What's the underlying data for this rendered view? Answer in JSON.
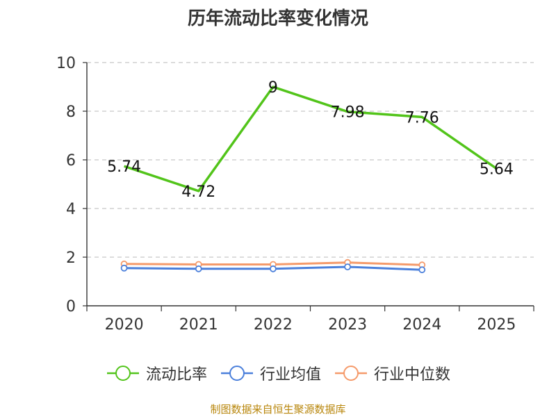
{
  "chart_data": {
    "type": "line",
    "title": "历年流动比率变化情况",
    "categories": [
      "2020",
      "2021",
      "2022",
      "2023",
      "2024",
      "2025"
    ],
    "ylim": [
      0,
      10
    ],
    "y_ticks": [
      "0",
      "2",
      "4",
      "6",
      "8",
      "10"
    ],
    "grid": true,
    "legend_position": "bottom",
    "series": [
      {
        "name": "流动比率",
        "color": "#52c41a",
        "values": [
          5.74,
          4.72,
          9,
          7.98,
          7.76,
          5.64
        ],
        "labels": [
          "5.74",
          "4.72",
          "9",
          "7.98",
          "7.76",
          "5.64"
        ],
        "show_labels": true,
        "show_markers": false
      },
      {
        "name": "行业均值",
        "color": "#4a7fdb",
        "values": [
          1.55,
          1.52,
          1.52,
          1.6,
          1.48,
          null
        ],
        "show_labels": false,
        "show_markers": true
      },
      {
        "name": "行业中位数",
        "color": "#f59a6a",
        "values": [
          1.72,
          1.7,
          1.7,
          1.78,
          1.68,
          null
        ],
        "show_labels": false,
        "show_markers": true
      }
    ]
  },
  "source": "制图数据来自恒生聚源数据库"
}
